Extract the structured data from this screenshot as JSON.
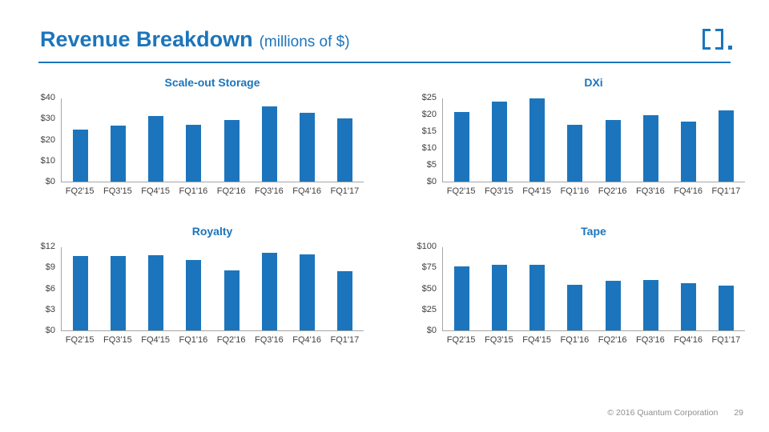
{
  "slide": {
    "title": "Revenue Breakdown",
    "subtitle": "(millions of $)",
    "footer": {
      "copyright": "© 2016 Quantum Corporation",
      "page_number": "29"
    }
  },
  "colors": {
    "accent": "#1B75BC",
    "bar": "#1C75BC",
    "axis_line": "#A6A6A6",
    "label_text": "#404040",
    "footer_text": "#8F8F8F"
  },
  "icons": {
    "logo": "quantum-brackets-logo"
  },
  "categories": [
    "FQ2'15",
    "FQ3'15",
    "FQ4'15",
    "FQ1'16",
    "FQ2'16",
    "FQ3'16",
    "FQ4'16",
    "FQ1'17"
  ],
  "chart_data": [
    {
      "type": "bar",
      "title": "Scale-out Storage",
      "categories": [
        "FQ2'15",
        "FQ3'15",
        "FQ4'15",
        "FQ1'16",
        "FQ2'16",
        "FQ3'16",
        "FQ4'16",
        "FQ1'17"
      ],
      "values": [
        25,
        27,
        31.5,
        27.5,
        29.5,
        36,
        33,
        30.5
      ],
      "ylim": [
        0,
        40
      ],
      "yticks": [
        0,
        10,
        20,
        30,
        40
      ],
      "ytick_labels": [
        "$0",
        "$10",
        "$20",
        "$30",
        "$40"
      ],
      "grid": false,
      "legend": "none"
    },
    {
      "type": "bar",
      "title": "DXi",
      "categories": [
        "FQ2'15",
        "FQ3'15",
        "FQ4'15",
        "FQ1'16",
        "FQ2'16",
        "FQ3'16",
        "FQ4'16",
        "FQ1'17"
      ],
      "values": [
        21,
        24,
        25,
        17,
        18.5,
        20,
        18,
        21.5
      ],
      "ylim": [
        0,
        25
      ],
      "yticks": [
        0,
        5,
        10,
        15,
        20,
        25
      ],
      "ytick_labels": [
        "$0",
        "$5",
        "$10",
        "$15",
        "$20",
        "$25"
      ],
      "grid": false,
      "legend": "none"
    },
    {
      "type": "bar",
      "title": "Royalty",
      "categories": [
        "FQ2'15",
        "FQ3'15",
        "FQ4'15",
        "FQ1'16",
        "FQ2'16",
        "FQ3'16",
        "FQ4'16",
        "FQ1'17"
      ],
      "values": [
        10.7,
        10.7,
        10.9,
        10.2,
        8.7,
        11.2,
        11,
        8.5
      ],
      "ylim": [
        0,
        12
      ],
      "yticks": [
        0,
        3,
        6,
        9,
        12
      ],
      "ytick_labels": [
        "$0",
        "$3",
        "$6",
        "$9",
        "$12"
      ],
      "grid": false,
      "legend": "none"
    },
    {
      "type": "bar",
      "title": "Tape",
      "categories": [
        "FQ2'15",
        "FQ3'15",
        "FQ4'15",
        "FQ1'16",
        "FQ2'16",
        "FQ3'16",
        "FQ4'16",
        "FQ1'17"
      ],
      "values": [
        77,
        79,
        79,
        55,
        60,
        61,
        57,
        54
      ],
      "ylim": [
        0,
        100
      ],
      "yticks": [
        0,
        25,
        50,
        75,
        100
      ],
      "ytick_labels": [
        "$0",
        "$25",
        "$50",
        "$75",
        "$100"
      ],
      "grid": false,
      "legend": "none"
    }
  ]
}
